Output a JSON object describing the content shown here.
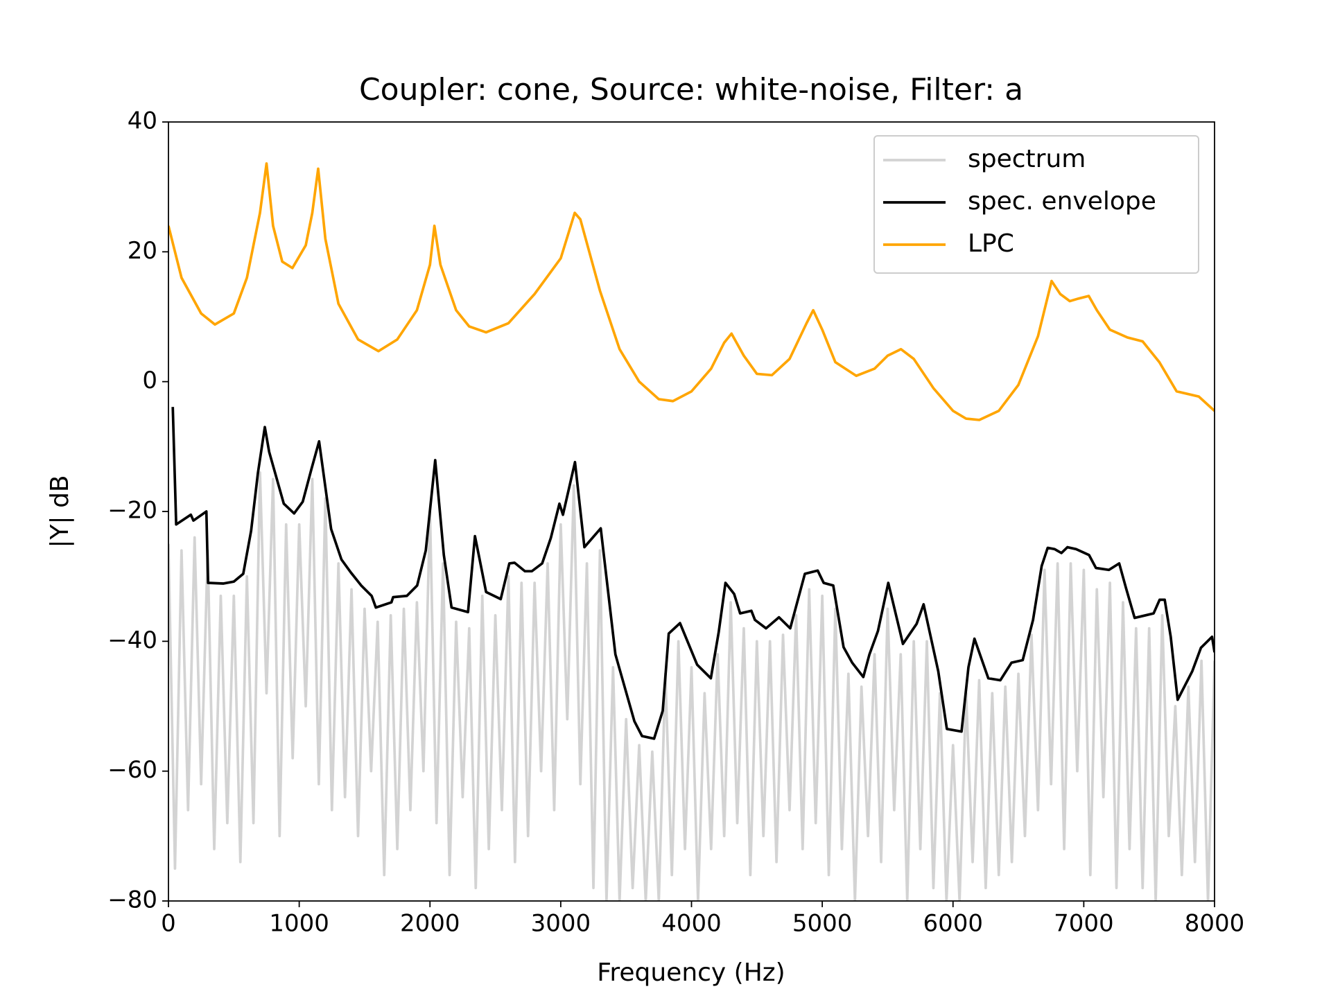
{
  "chart_data": {
    "type": "line",
    "title": "Coupler: cone, Source: white-noise, Filter: a",
    "x_label": "Frequency (Hz)",
    "y_label": "|Y| dB",
    "xlim": [
      0,
      8000
    ],
    "ylim": [
      -80,
      40
    ],
    "xticks": [
      0,
      1000,
      2000,
      3000,
      4000,
      5000,
      6000,
      7000,
      8000
    ],
    "yticks": [
      {
        "value": -80,
        "label": "−80"
      },
      {
        "value": -60,
        "label": "−60"
      },
      {
        "value": -40,
        "label": "−40"
      },
      {
        "value": -20,
        "label": "−20"
      },
      0,
      20,
      40
    ],
    "grid": false,
    "legend": "upper right",
    "series": [
      {
        "name": "spectrum",
        "color": "#d3d3d3",
        "x": [
          0,
          50,
          100,
          150,
          200,
          250,
          300,
          350,
          400,
          450,
          500,
          550,
          600,
          650,
          700,
          750,
          800,
          850,
          900,
          950,
          1000,
          1050,
          1100,
          1150,
          1200,
          1250,
          1300,
          1350,
          1400,
          1450,
          1500,
          1550,
          1600,
          1650,
          1700,
          1750,
          1800,
          1850,
          1900,
          1950,
          2000,
          2050,
          2100,
          2150,
          2200,
          2250,
          2300,
          2350,
          2400,
          2450,
          2500,
          2550,
          2600,
          2650,
          2700,
          2750,
          2800,
          2850,
          2900,
          2950,
          3000,
          3050,
          3100,
          3150,
          3200,
          3250,
          3300,
          3350,
          3400,
          3450,
          3500,
          3550,
          3600,
          3650,
          3700,
          3750,
          3800,
          3850,
          3900,
          3950,
          4000,
          4050,
          4100,
          4150,
          4200,
          4250,
          4300,
          4350,
          4400,
          4450,
          4500,
          4550,
          4600,
          4650,
          4700,
          4750,
          4800,
          4850,
          4900,
          4950,
          5000,
          5050,
          5100,
          5150,
          5200,
          5250,
          5300,
          5350,
          5400,
          5450,
          5500,
          5550,
          5600,
          5650,
          5700,
          5750,
          5800,
          5850,
          5900,
          5950,
          6000,
          6050,
          6100,
          6150,
          6200,
          6250,
          6300,
          6350,
          6400,
          6450,
          6500,
          6550,
          6600,
          6650,
          6700,
          6750,
          6800,
          6850,
          6900,
          6950,
          7000,
          7050,
          7100,
          7150,
          7200,
          7250,
          7300,
          7350,
          7400,
          7450,
          7500,
          7550,
          7600,
          7650,
          7700,
          7750,
          7800,
          7850,
          7900,
          7950,
          8000
        ],
        "values": [
          -25,
          -75,
          -26,
          -66,
          -24,
          -62,
          -26,
          -72,
          -33,
          -68,
          -33,
          -74,
          -30,
          -68,
          -14,
          -48,
          -15,
          -70,
          -22,
          -58,
          -22,
          -50,
          -15,
          -62,
          -18,
          -66,
          -28,
          -64,
          -32,
          -70,
          -35,
          -60,
          -37,
          -76,
          -36,
          -72,
          -35,
          -66,
          -34,
          -60,
          -20,
          -68,
          -28,
          -76,
          -37,
          -64,
          -38,
          -78,
          -33,
          -72,
          -36,
          -66,
          -30,
          -74,
          -31,
          -70,
          -31,
          -60,
          -28,
          -66,
          -22,
          -52,
          -16,
          -62,
          -28,
          -78,
          -26,
          -80,
          -44,
          -80,
          -52,
          -78,
          -56,
          -80,
          -57,
          -80,
          -45,
          -76,
          -40,
          -72,
          -44,
          -80,
          -48,
          -72,
          -42,
          -70,
          -34,
          -68,
          -38,
          -76,
          -40,
          -70,
          -40,
          -74,
          -39,
          -66,
          -36,
          -72,
          -32,
          -68,
          -33,
          -76,
          -35,
          -72,
          -45,
          -80,
          -47,
          -70,
          -42,
          -74,
          -35,
          -66,
          -42,
          -80,
          -40,
          -72,
          -40,
          -78,
          -48,
          -80,
          -56,
          -80,
          -48,
          -74,
          -46,
          -78,
          -48,
          -76,
          -47,
          -74,
          -45,
          -70,
          -39,
          -66,
          -29,
          -62,
          -28,
          -72,
          -28,
          -60,
          -29,
          -76,
          -32,
          -64,
          -31,
          -78,
          -34,
          -72,
          -38,
          -78,
          -38,
          -80,
          -36,
          -70,
          -50,
          -76,
          -47,
          -74,
          -43,
          -80,
          -43
        ]
      },
      {
        "name": "spec. envelope",
        "color": "#000000",
        "x": [
          33,
          59,
          171,
          191,
          290,
          303,
          421,
          500,
          572,
          632,
          684,
          737,
          770,
          882,
          961,
          1027,
          1093,
          1152,
          1244,
          1323,
          1395,
          1474,
          1554,
          1586,
          1705,
          1718,
          1823,
          1902,
          1968,
          2040,
          2106,
          2165,
          2291,
          2344,
          2377,
          2429,
          2541,
          2607,
          2647,
          2726,
          2779,
          2858,
          2924,
          2990,
          3017,
          3109,
          3181,
          3306,
          3418,
          3563,
          3622,
          3714,
          3780,
          3826,
          3912,
          4043,
          4148,
          4208,
          4260,
          4326,
          4372,
          4458,
          4485,
          4570,
          4669,
          4755,
          4867,
          4965,
          5011,
          5084,
          5163,
          5229,
          5314,
          5361,
          5426,
          5505,
          5617,
          5722,
          5775,
          5887,
          5953,
          6065,
          6118,
          6164,
          6270,
          6362,
          6447,
          6533,
          6612,
          6678,
          6724,
          6777,
          6829,
          6875,
          6941,
          7040,
          7093,
          7192,
          7271,
          7323,
          7389,
          7534,
          7580,
          7619,
          7665,
          7718,
          7830,
          7896,
          7981,
          8000
        ],
        "values": [
          -3.9,
          -22,
          -20.5,
          -21.4,
          -20,
          -31,
          -31.1,
          -30.8,
          -29.6,
          -23,
          -14.1,
          -7,
          -10.8,
          -18.8,
          -20.3,
          -18.5,
          -13.5,
          -9.2,
          -22.7,
          -27.4,
          -29.4,
          -31.4,
          -33,
          -34.8,
          -34,
          -33.2,
          -33,
          -31.4,
          -26,
          -12.1,
          -26.7,
          -34.8,
          -35.5,
          -23.8,
          -27.1,
          -32.4,
          -33.5,
          -28,
          -27.9,
          -29.2,
          -29.2,
          -28,
          -24.1,
          -18.8,
          -20.5,
          -12.4,
          -25.5,
          -22.6,
          -42,
          -52.3,
          -54.6,
          -55,
          -50.7,
          -38.8,
          -37.2,
          -43.6,
          -45.7,
          -38.6,
          -31,
          -32.7,
          -35.7,
          -35.3,
          -36.7,
          -38,
          -36.3,
          -38,
          -29.6,
          -29.1,
          -31,
          -31.4,
          -40.9,
          -43.3,
          -45.5,
          -42,
          -38.4,
          -31,
          -40.4,
          -37.3,
          -34.3,
          -44.6,
          -53.5,
          -53.9,
          -44,
          -39.6,
          -45.7,
          -46,
          -43.3,
          -42.9,
          -36.7,
          -28.4,
          -25.6,
          -25.8,
          -26.4,
          -25.5,
          -25.8,
          -26.7,
          -28.7,
          -29,
          -28,
          -31.8,
          -36.4,
          -35.7,
          -33.6,
          -33.6,
          -39.3,
          -49,
          -44.6,
          -41,
          -39.3,
          -41.7
        ]
      },
      {
        "name": "LPC",
        "color": "#ffa500",
        "x": [
          0,
          100,
          250,
          355,
          500,
          600,
          700,
          750,
          800,
          870,
          948,
          1050,
          1100,
          1145,
          1200,
          1300,
          1450,
          1606,
          1750,
          1900,
          2000,
          2034,
          2080,
          2200,
          2300,
          2429,
          2600,
          2800,
          3000,
          3107,
          3150,
          3300,
          3450,
          3600,
          3750,
          3858,
          4000,
          4150,
          4250,
          4306,
          4400,
          4500,
          4615,
          4750,
          4880,
          4931,
          5000,
          5100,
          5260,
          5400,
          5500,
          5602,
          5700,
          5850,
          6000,
          6100,
          6201,
          6350,
          6500,
          6650,
          6754,
          6820,
          6893,
          6960,
          7038,
          7100,
          7200,
          7334,
          7450,
          7578,
          7710,
          7880,
          8000
        ],
        "values": [
          24,
          16,
          10.5,
          8.8,
          10.5,
          16,
          26,
          33.6,
          24,
          18.5,
          17.5,
          21,
          26,
          32.8,
          22,
          12,
          6.5,
          4.7,
          6.5,
          11,
          18,
          24,
          18,
          11,
          8.5,
          7.6,
          9,
          13.5,
          19,
          26,
          25,
          14,
          5,
          0,
          -2.7,
          -3,
          -1.5,
          2,
          6,
          7.4,
          4,
          1.2,
          1,
          3.5,
          9,
          11,
          8,
          3,
          0.9,
          2,
          4,
          5,
          3.5,
          -1,
          -4.5,
          -5.7,
          -5.9,
          -4.5,
          -0.5,
          7,
          15.5,
          13.5,
          12.4,
          12.8,
          13.2,
          11,
          8,
          6.8,
          6.2,
          3,
          -1.5,
          -2.3,
          -4.5
        ]
      }
    ]
  }
}
